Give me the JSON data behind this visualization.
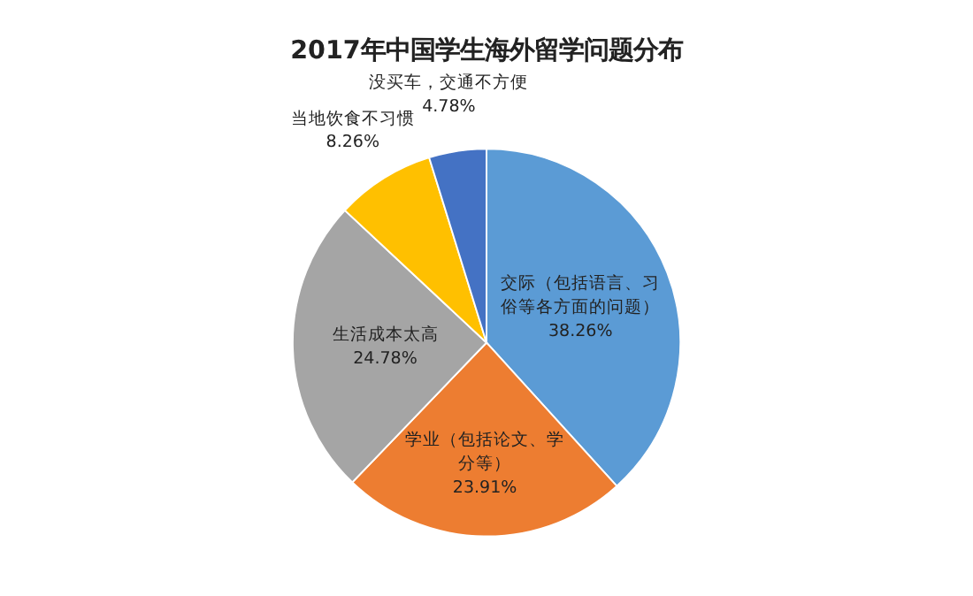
{
  "chart_data": {
    "type": "pie",
    "title": "2017年中国学生海外留学问题分布",
    "categories": [
      "交际（包括语言、习俗等各方面的问题）",
      "学业（包括论文、学分等）",
      "生活成本太高",
      "当地饮食不习惯",
      "没买车，交通不方便"
    ],
    "values": [
      38.26,
      23.91,
      24.78,
      8.26,
      4.78
    ],
    "value_labels": [
      "38.26%",
      "23.91%",
      "24.78%",
      "8.26%",
      "4.78%"
    ],
    "colors": [
      "#5b9bd5",
      "#ed7d31",
      "#a5a5a5",
      "#ffc000",
      "#4472c4"
    ]
  }
}
